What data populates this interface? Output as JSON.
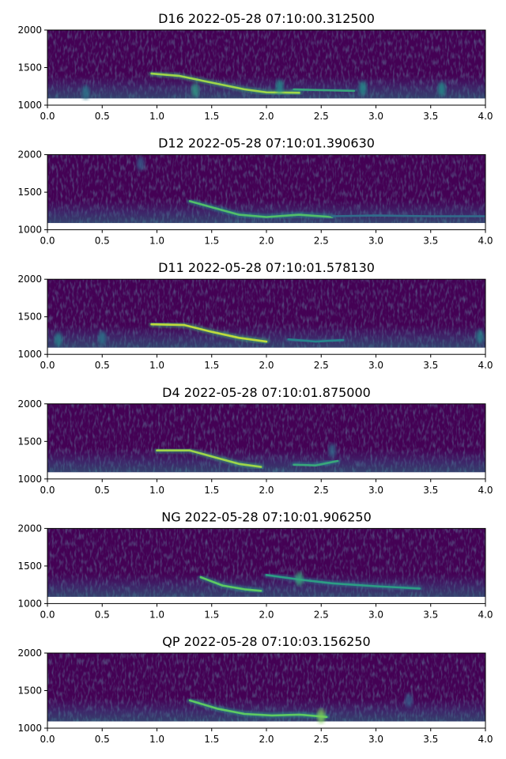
{
  "chart_data": [
    {
      "type": "heatmap",
      "title": "D16 2022-05-28 07:10:00.312500",
      "xlim": [
        0.0,
        4.0
      ],
      "ylim": [
        1000,
        2000
      ],
      "xticks": [
        "0.0",
        "0.5",
        "1.0",
        "1.5",
        "2.0",
        "2.5",
        "3.0",
        "3.5",
        "4.0"
      ],
      "yticks": [
        "1000",
        "1500",
        "2000"
      ],
      "colormap": "viridis",
      "features": [
        {
          "kind": "trace",
          "points": [
            [
              0.95,
              1420
            ],
            [
              1.2,
              1390
            ],
            [
              1.5,
              1300
            ],
            [
              1.8,
              1210
            ],
            [
              2.0,
              1170
            ],
            [
              2.3,
              1165
            ]
          ],
          "intensity": 0.85
        },
        {
          "kind": "trace",
          "points": [
            [
              2.25,
              1210
            ],
            [
              2.5,
              1200
            ],
            [
              2.8,
              1190
            ]
          ],
          "intensity": 0.6
        },
        {
          "kind": "blob",
          "x": 1.35,
          "y": 1200,
          "intensity": 0.55
        },
        {
          "kind": "blob",
          "x": 2.12,
          "y": 1250,
          "intensity": 0.5
        },
        {
          "kind": "blob",
          "x": 2.88,
          "y": 1230,
          "intensity": 0.5
        },
        {
          "kind": "blob",
          "x": 3.6,
          "y": 1220,
          "intensity": 0.5
        },
        {
          "kind": "blob",
          "x": 0.35,
          "y": 1170,
          "intensity": 0.4
        }
      ]
    },
    {
      "type": "heatmap",
      "title": "D12 2022-05-28 07:10:01.390630",
      "xlim": [
        0.0,
        4.0
      ],
      "ylim": [
        1000,
        2000
      ],
      "xticks": [
        "0.0",
        "0.5",
        "1.0",
        "1.5",
        "2.0",
        "2.5",
        "3.0",
        "3.5",
        "4.0"
      ],
      "yticks": [
        "1000",
        "1500",
        "2000"
      ],
      "colormap": "viridis",
      "features": [
        {
          "kind": "trace",
          "points": [
            [
              1.3,
              1380
            ],
            [
              1.5,
              1300
            ],
            [
              1.75,
              1200
            ],
            [
              2.0,
              1170
            ],
            [
              2.3,
              1200
            ],
            [
              2.6,
              1170
            ]
          ],
          "intensity": 0.7
        },
        {
          "kind": "trace",
          "points": [
            [
              2.6,
              1180
            ],
            [
              3.0,
              1190
            ],
            [
              3.5,
              1180
            ],
            [
              4.0,
              1180
            ]
          ],
          "intensity": 0.35
        },
        {
          "kind": "blob",
          "x": 0.85,
          "y": 1880,
          "intensity": 0.3
        }
      ]
    },
    {
      "type": "heatmap",
      "title": "D11 2022-05-28 07:10:01.578130",
      "xlim": [
        0.0,
        4.0
      ],
      "ylim": [
        1000,
        2000
      ],
      "xticks": [
        "0.0",
        "0.5",
        "1.0",
        "1.5",
        "2.0",
        "2.5",
        "3.0",
        "3.5",
        "4.0"
      ],
      "yticks": [
        "1000",
        "1500",
        "2000"
      ],
      "colormap": "viridis",
      "features": [
        {
          "kind": "trace",
          "points": [
            [
              0.95,
              1400
            ],
            [
              1.25,
              1390
            ],
            [
              1.5,
              1300
            ],
            [
              1.75,
              1220
            ],
            [
              2.0,
              1170
            ]
          ],
          "intensity": 0.9
        },
        {
          "kind": "trace",
          "points": [
            [
              2.2,
              1200
            ],
            [
              2.45,
              1170
            ],
            [
              2.7,
              1190
            ]
          ],
          "intensity": 0.45
        },
        {
          "kind": "blob",
          "x": 0.1,
          "y": 1200,
          "intensity": 0.45
        },
        {
          "kind": "blob",
          "x": 0.5,
          "y": 1220,
          "intensity": 0.4
        },
        {
          "kind": "blob",
          "x": 3.95,
          "y": 1240,
          "intensity": 0.45
        }
      ]
    },
    {
      "type": "heatmap",
      "title": "D4 2022-05-28 07:10:01.875000",
      "xlim": [
        0.0,
        4.0
      ],
      "ylim": [
        1000,
        2000
      ],
      "xticks": [
        "0.0",
        "0.5",
        "1.0",
        "1.5",
        "2.0",
        "2.5",
        "3.0",
        "3.5",
        "4.0"
      ],
      "yticks": [
        "1000",
        "1500",
        "2000"
      ],
      "colormap": "viridis",
      "features": [
        {
          "kind": "trace",
          "points": [
            [
              1.0,
              1380
            ],
            [
              1.3,
              1380
            ],
            [
              1.55,
              1280
            ],
            [
              1.75,
              1200
            ],
            [
              1.95,
              1160
            ]
          ],
          "intensity": 0.85
        },
        {
          "kind": "trace",
          "points": [
            [
              2.25,
              1190
            ],
            [
              2.45,
              1180
            ],
            [
              2.65,
              1240
            ]
          ],
          "intensity": 0.6
        },
        {
          "kind": "blob",
          "x": 2.6,
          "y": 1380,
          "intensity": 0.35
        }
      ]
    },
    {
      "type": "heatmap",
      "title": "NG 2022-05-28 07:10:01.906250",
      "xlim": [
        0.0,
        4.0
      ],
      "ylim": [
        1000,
        2000
      ],
      "xticks": [
        "0.0",
        "0.5",
        "1.0",
        "1.5",
        "2.0",
        "2.5",
        "3.0",
        "3.5",
        "4.0"
      ],
      "yticks": [
        "1000",
        "1500",
        "2000"
      ],
      "colormap": "viridis",
      "features": [
        {
          "kind": "trace",
          "points": [
            [
              1.4,
              1350
            ],
            [
              1.6,
              1240
            ],
            [
              1.8,
              1190
            ],
            [
              1.95,
              1170
            ]
          ],
          "intensity": 0.75
        },
        {
          "kind": "trace",
          "points": [
            [
              2.0,
              1380
            ],
            [
              2.3,
              1320
            ],
            [
              2.6,
              1270
            ],
            [
              3.0,
              1230
            ],
            [
              3.4,
              1200
            ]
          ],
          "intensity": 0.55
        },
        {
          "kind": "blob",
          "x": 2.3,
          "y": 1330,
          "intensity": 0.6
        }
      ]
    },
    {
      "type": "heatmap",
      "title": "QP 2022-05-28 07:10:03.156250",
      "xlim": [
        0.0,
        4.0
      ],
      "ylim": [
        1000,
        2000
      ],
      "xticks": [
        "0.0",
        "0.5",
        "1.0",
        "1.5",
        "2.0",
        "2.5",
        "3.0",
        "3.5",
        "4.0"
      ],
      "yticks": [
        "1000",
        "1500",
        "2000"
      ],
      "colormap": "viridis",
      "features": [
        {
          "kind": "trace",
          "points": [
            [
              1.3,
              1370
            ],
            [
              1.55,
              1260
            ],
            [
              1.8,
              1190
            ],
            [
              2.05,
              1170
            ],
            [
              2.3,
              1180
            ],
            [
              2.55,
              1150
            ]
          ],
          "intensity": 0.75
        },
        {
          "kind": "blob",
          "x": 2.5,
          "y": 1160,
          "intensity": 0.8
        },
        {
          "kind": "blob",
          "x": 3.3,
          "y": 1370,
          "intensity": 0.3
        }
      ]
    }
  ]
}
